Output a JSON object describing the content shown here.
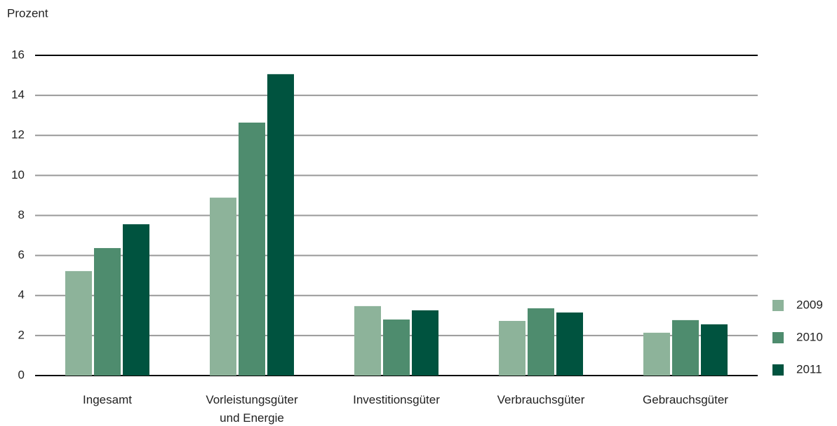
{
  "chart_data": {
    "type": "bar",
    "y_axis_label": "Prozent",
    "categories": [
      "Ingesamt",
      "Vorleistungsgüter\nund Energie",
      "Investitionsgüter",
      "Verbrauchsgüter",
      "Gebrauchsgüter"
    ],
    "series": [
      {
        "name": "2009",
        "color": "#8db39a",
        "values": [
          5.22,
          8.89,
          3.47,
          2.73,
          2.14
        ]
      },
      {
        "name": "2010",
        "color": "#4e8c6e",
        "values": [
          6.37,
          12.64,
          2.8,
          3.36,
          2.77
        ]
      },
      {
        "name": "2011",
        "color": "#00533f",
        "values": [
          7.56,
          15.06,
          3.26,
          3.15,
          2.56
        ]
      }
    ],
    "ylim": [
      0,
      16
    ],
    "yticks": [
      0,
      2,
      4,
      6,
      8,
      10,
      12,
      14,
      16
    ],
    "grid": true,
    "legend": "right"
  }
}
